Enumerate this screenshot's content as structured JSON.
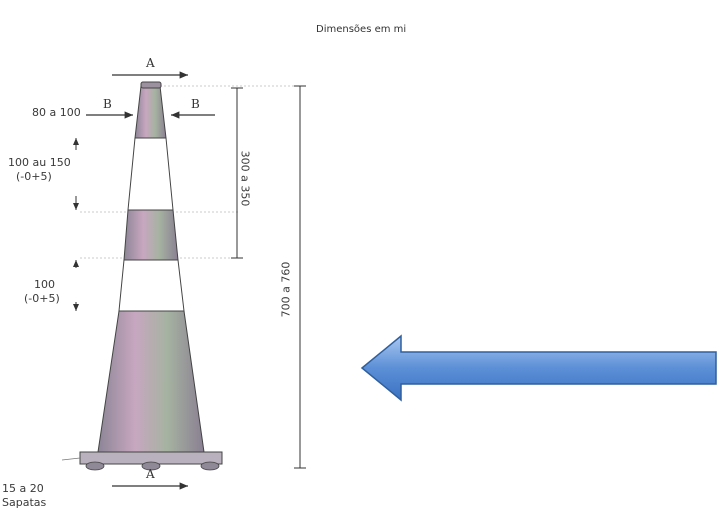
{
  "title": "Dimensões em mi",
  "labels": {
    "section_a_top": "A",
    "section_a_bottom": "A",
    "section_b_left": "B",
    "section_b_right": "B",
    "top_width": "80 a 100",
    "band_height_line1": "100 au 150",
    "band_height_line2": "(-0+5)",
    "gap_line1": "100",
    "gap_line2": "(-0+5)",
    "band_zone": "300 a 350",
    "total_height": "700 a 760",
    "base_line1": "15 a 20",
    "base_line2": "Sapatas"
  },
  "colors": {
    "arrow_fill_top": "#9fc0ec",
    "arrow_fill_bottom": "#3d78c7",
    "arrow_stroke": "#2f5f9e",
    "band": "#9a8fa3",
    "outline": "#444444"
  }
}
